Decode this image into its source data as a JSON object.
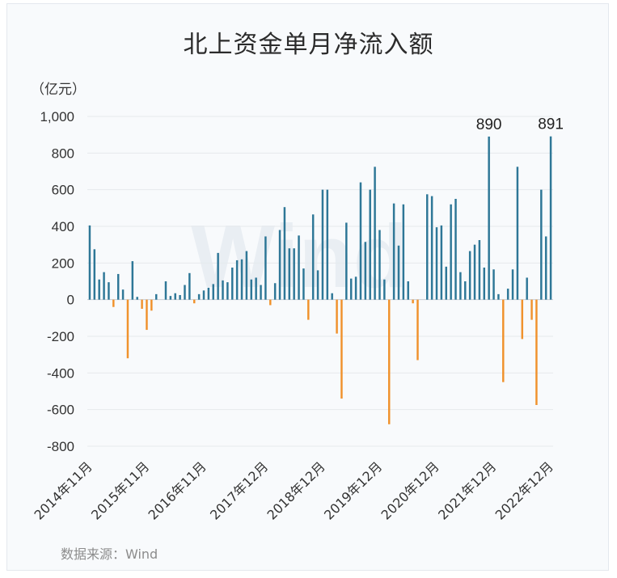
{
  "chart_data": {
    "type": "bar",
    "title": "北上资金单月净流入额",
    "ylabel": "（亿元）",
    "source": "数据来源：Wind",
    "watermark": "Wind",
    "ylim": [
      -800,
      1000
    ],
    "yticks": [
      -800,
      -600,
      -400,
      -200,
      0,
      200,
      400,
      600,
      800,
      1000
    ],
    "ytick_labels": [
      "-800",
      "-600",
      "-400",
      "-200",
      "0",
      "200",
      "400",
      "600",
      "800",
      "1,000"
    ],
    "x_tick_labels": [
      "2014年11月",
      "2015年11月",
      "2016年11月",
      "2017年12月",
      "2018年12月",
      "2019年12月",
      "2020年12月",
      "2021年12月",
      "2022年12月"
    ],
    "x_tick_index": [
      0,
      12,
      24,
      37,
      49,
      61,
      73,
      85,
      97
    ],
    "positive_color": "#2e7797",
    "negative_color": "#f0922d",
    "values": [
      405,
      275,
      110,
      150,
      95,
      -40,
      140,
      55,
      -320,
      210,
      15,
      -50,
      -165,
      -60,
      30,
      0,
      100,
      20,
      35,
      25,
      80,
      145,
      -20,
      30,
      50,
      65,
      85,
      255,
      105,
      95,
      175,
      215,
      220,
      265,
      110,
      120,
      80,
      345,
      -30,
      90,
      380,
      505,
      280,
      280,
      350,
      170,
      -110,
      465,
      160,
      600,
      600,
      35,
      -185,
      -540,
      420,
      115,
      125,
      640,
      315,
      600,
      725,
      380,
      110,
      -680,
      525,
      295,
      520,
      100,
      -20,
      -330,
      0,
      575,
      565,
      395,
      405,
      180,
      520,
      550,
      150,
      100,
      265,
      300,
      325,
      175,
      890,
      165,
      30,
      -450,
      60,
      165,
      725,
      -215,
      120,
      -110,
      -575,
      600,
      345,
      891
    ],
    "annotations": [
      {
        "index": 84,
        "text": "890"
      },
      {
        "index": 97,
        "text": "891"
      }
    ]
  }
}
